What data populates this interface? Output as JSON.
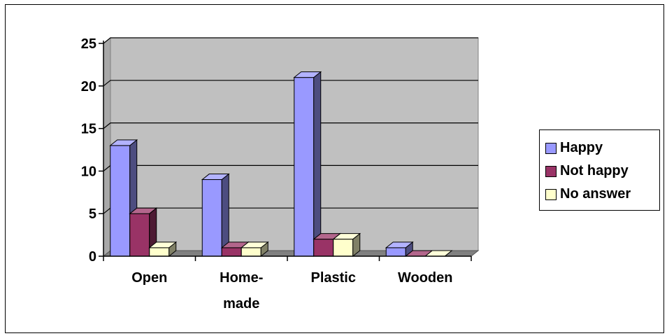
{
  "chart_data": {
    "type": "bar",
    "style": "3d-clustered-column",
    "categories": [
      "Open",
      "Home-\nmade",
      "Plastic",
      "Wooden"
    ],
    "series": [
      {
        "name": "Happy",
        "color": "#9999FF",
        "values": [
          13,
          9,
          21,
          1
        ]
      },
      {
        "name": "Not happy",
        "color": "#993366",
        "values": [
          5,
          1,
          2,
          0
        ]
      },
      {
        "name": "No answer",
        "color": "#FFFFCC",
        "values": [
          1,
          1,
          2,
          0
        ]
      }
    ],
    "ylim": [
      0,
      25
    ],
    "yticks": [
      0,
      5,
      10,
      15,
      20,
      25
    ],
    "grid": true,
    "plot_background": "#C0C0C0",
    "legend_position": "right"
  }
}
